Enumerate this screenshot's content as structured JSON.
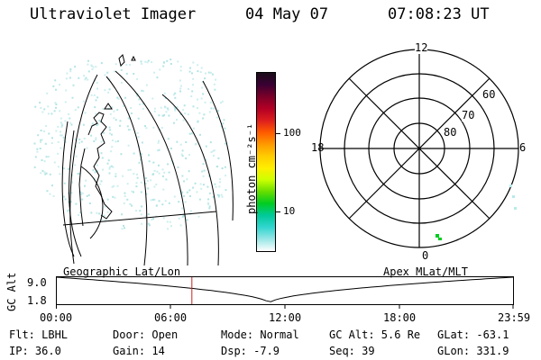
{
  "header": {
    "instrument": "Ultraviolet Imager",
    "date": "04 May 07",
    "time": "07:08:23 UT"
  },
  "colorbar": {
    "unit_label": "photon cm⁻²s⁻¹",
    "ticks": [
      "100",
      "10"
    ],
    "colors": [
      "#1a0d1a",
      "#3a0033",
      "#7a0029",
      "#b30024",
      "#dd1e1e",
      "#ff5a00",
      "#ff9900",
      "#ffcc00",
      "#ffee00",
      "#ccff00",
      "#66dd00",
      "#00cc22",
      "#00c99a",
      "#33d6d0",
      "#99e6e6",
      "#ffffff"
    ]
  },
  "polar": {
    "mlt_labels": [
      "12",
      "18",
      "6",
      "0"
    ],
    "lat_labels": [
      "60",
      "70",
      "80"
    ]
  },
  "timeline": {
    "left_label": "Geographic Lat/Lon",
    "right_label": "Apex  MLat/MLT",
    "y_axis_label": "GC Alt",
    "y_ticks": [
      "9.0",
      "1.8"
    ],
    "x_ticks": [
      "00:00",
      "06:00",
      "12:00",
      "18:00",
      "23:59"
    ],
    "current_time_marker_hours": 7.14
  },
  "info": {
    "filter": "Flt: LBHL",
    "ip": "IP: 36.0",
    "door": "Door: Open",
    "gain": "Gain: 14",
    "mode": "Mode: Normal",
    "dsp": "Dsp:   -7.9",
    "gc_alt": "GC Alt: 5.6 Re",
    "seq": "Seq: 39",
    "glat": "GLat: -63.1",
    "glon": "GLon: 331.9"
  }
}
